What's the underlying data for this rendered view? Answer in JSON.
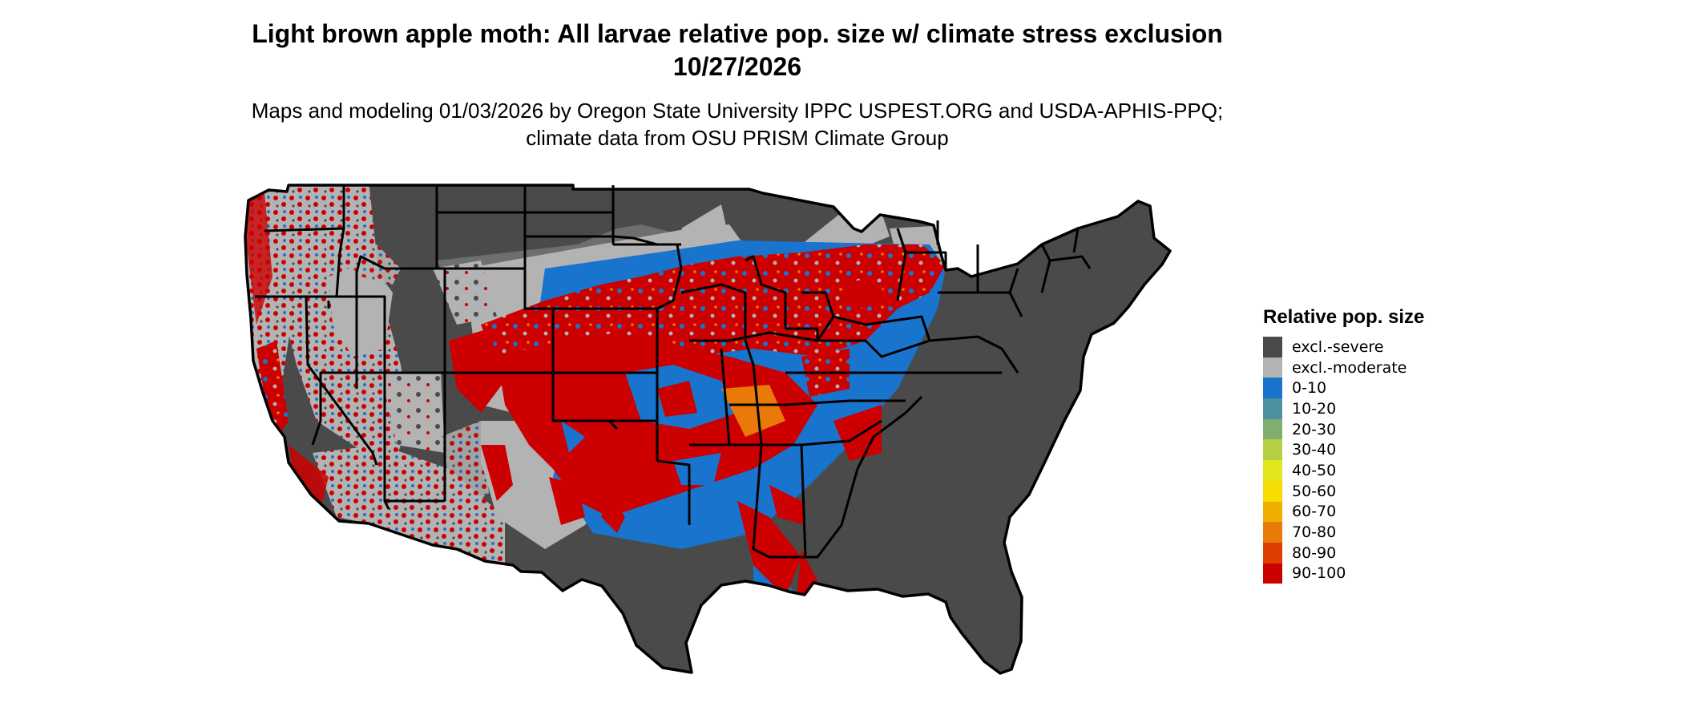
{
  "title": "Light brown apple moth: All larvae relative pop. size w/ climate stress exclusion 10/27/2026",
  "subtitle": "Maps and modeling 01/03/2026 by Oregon State University IPPC USPEST.ORG and USDA-APHIS-PPQ; climate data from OSU PRISM Climate Group",
  "legend": {
    "title": "Relative pop. size",
    "items": [
      {
        "label": "excl.-severe",
        "color": "#4a4a4a"
      },
      {
        "label": "excl.-moderate",
        "color": "#b3b3b3"
      },
      {
        "label": "0-10",
        "color": "#1874cd"
      },
      {
        "label": "10-20",
        "color": "#4a92a0"
      },
      {
        "label": "20-30",
        "color": "#7fae6e"
      },
      {
        "label": "30-40",
        "color": "#b5cf45"
      },
      {
        "label": "40-50",
        "color": "#e2e61f"
      },
      {
        "label": "50-60",
        "color": "#f6dc00"
      },
      {
        "label": "60-70",
        "color": "#f0ae00"
      },
      {
        "label": "70-80",
        "color": "#e97a0a"
      },
      {
        "label": "80-90",
        "color": "#dd3f00"
      },
      {
        "label": "90-100",
        "color": "#cc0000"
      }
    ]
  }
}
